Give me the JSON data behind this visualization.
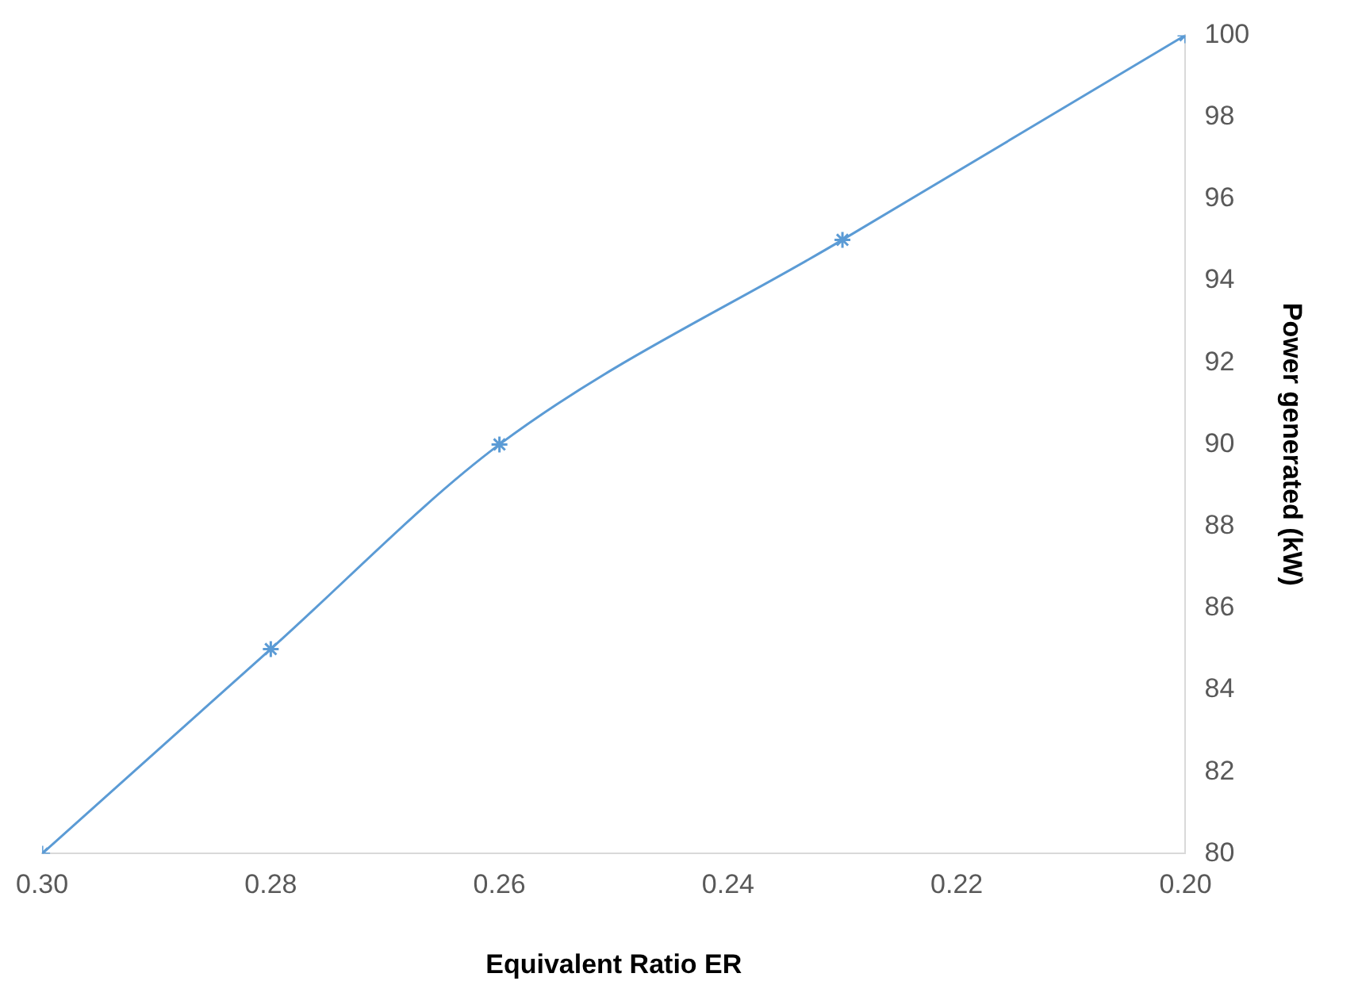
{
  "chart_data": {
    "type": "line",
    "xlabel": "Equivalent Ratio ER",
    "ylabel": "Power generated (kW)",
    "x": [
      0.3,
      0.28,
      0.26,
      0.23,
      0.2
    ],
    "series": [
      {
        "color": "#5b9bd5",
        "values": [
          80,
          85,
          90,
          95,
          100
        ]
      }
    ],
    "xlim": [
      0.3,
      0.2
    ],
    "xticks": [
      {
        "value": 0.3,
        "label": "0.30"
      },
      {
        "value": 0.28,
        "label": "0.28"
      },
      {
        "value": 0.26,
        "label": "0.26"
      },
      {
        "value": 0.24,
        "label": "0.24"
      },
      {
        "value": 0.22,
        "label": "0.22"
      },
      {
        "value": 0.2,
        "label": "0.20"
      }
    ],
    "ylim": [
      80,
      100
    ],
    "yticks": [
      80,
      82,
      84,
      86,
      88,
      90,
      92,
      94,
      96,
      98,
      100
    ],
    "grid": false,
    "legend": false,
    "marker": "cross",
    "line_style": "solid"
  }
}
